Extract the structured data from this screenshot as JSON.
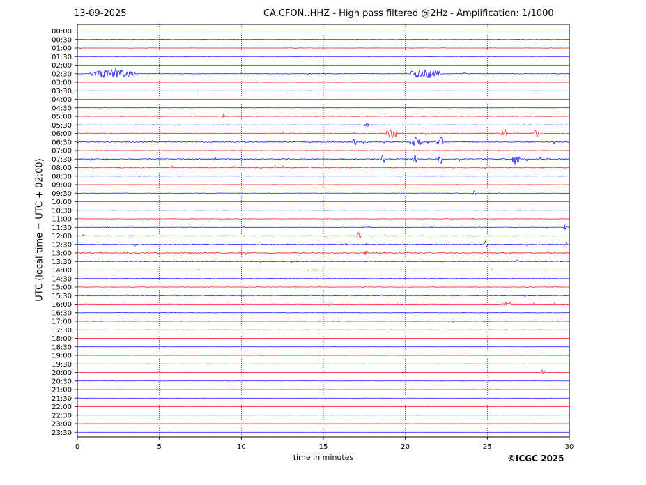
{
  "header": {
    "date": "13-09-2025",
    "title": "CA.CFON..HHZ - High pass filtered @2Hz - Amplification: 1/1000"
  },
  "footer": {
    "copyright": "©ICGC 2025"
  },
  "chart_data": {
    "type": "line",
    "title": "CA.CFON..HHZ - High pass filtered @2Hz - Amplification: 1/1000",
    "xlabel": "time in minutes",
    "ylabel": "UTC (local time = UTC + 02:00)",
    "xlim": [
      0,
      30
    ],
    "x_ticks": [
      0,
      5,
      10,
      15,
      20,
      25,
      30
    ],
    "x_gridlines": "dotted at 5, 10, 15, 20, 25",
    "trace_colors": [
      "#ff0000",
      "#0000ff"
    ],
    "rows": [
      "00:00",
      "00:30",
      "01:00",
      "01:30",
      "02:00",
      "02:30",
      "03:00",
      "03:30",
      "04:00",
      "04:30",
      "05:00",
      "05:30",
      "06:00",
      "06:30",
      "07:00",
      "07:30",
      "08:00",
      "08:30",
      "09:00",
      "09:30",
      "10:00",
      "10:30",
      "11:00",
      "11:30",
      "12:00",
      "12:30",
      "13:00",
      "13:30",
      "14:00",
      "14:30",
      "15:00",
      "15:30",
      "16:00",
      "16:30",
      "17:00",
      "17:30",
      "18:00",
      "18:30",
      "19:00",
      "19:30",
      "20:00",
      "20:30",
      "21:00",
      "21:30",
      "22:00",
      "22:30",
      "23:00",
      "23:30"
    ],
    "row_activity": [
      0.2,
      0.3,
      0.3,
      0.2,
      0.2,
      0.5,
      0.15,
      0.15,
      0.2,
      0.15,
      0.4,
      0.4,
      0.8,
      0.8,
      0.3,
      0.9,
      0.8,
      0.25,
      0.25,
      0.4,
      0.25,
      0.25,
      0.4,
      0.4,
      0.7,
      0.7,
      0.8,
      0.7,
      0.5,
      0.35,
      0.45,
      0.5,
      0.7,
      0.35,
      0.4,
      0.25,
      0.3,
      0.2,
      0.15,
      0.15,
      0.2,
      0.15,
      0.15,
      0.15,
      0.12,
      0.12,
      0.1,
      0.1
    ],
    "events": [
      {
        "row": "02:30",
        "x": [
          0.8,
          3.5
        ],
        "amp": 1.0
      },
      {
        "row": "02:30",
        "x": [
          20.3,
          22.2
        ],
        "amp": 1.0
      },
      {
        "row": "05:00",
        "x": [
          8.8,
          9.1
        ],
        "amp": 0.5
      },
      {
        "row": "05:30",
        "x": [
          17.5,
          17.8
        ],
        "amp": 0.4
      },
      {
        "row": "06:00",
        "x": [
          18.8,
          19.5
        ],
        "amp": 1.0
      },
      {
        "row": "06:00",
        "x": [
          25.8,
          26.2
        ],
        "amp": 1.0
      },
      {
        "row": "06:00",
        "x": [
          27.8,
          28.2
        ],
        "amp": 1.5
      },
      {
        "row": "06:30",
        "x": [
          16.8,
          17.0
        ],
        "amp": 1.4
      },
      {
        "row": "06:30",
        "x": [
          20.3,
          21.0
        ],
        "amp": 1.0
      },
      {
        "row": "06:30",
        "x": [
          22.0,
          22.3
        ],
        "amp": 1.0
      },
      {
        "row": "07:30",
        "x": [
          18.5,
          18.7
        ],
        "amp": 2.6
      },
      {
        "row": "07:30",
        "x": [
          20.4,
          20.7
        ],
        "amp": 1.2
      },
      {
        "row": "07:30",
        "x": [
          22.0,
          22.3
        ],
        "amp": 1.0
      },
      {
        "row": "07:30",
        "x": [
          26.5,
          27.0
        ],
        "amp": 1.2
      },
      {
        "row": "09:30",
        "x": [
          24.1,
          24.3
        ],
        "amp": 0.8
      },
      {
        "row": "11:30",
        "x": [
          29.6,
          29.9
        ],
        "amp": 0.6
      },
      {
        "row": "12:00",
        "x": [
          17.0,
          17.3
        ],
        "amp": 0.7
      },
      {
        "row": "12:30",
        "x": [
          24.8,
          25.0
        ],
        "amp": 0.8
      },
      {
        "row": "13:00",
        "x": [
          17.4,
          17.7
        ],
        "amp": 0.7
      },
      {
        "row": "16:00",
        "x": [
          25.8,
          26.5
        ],
        "amp": 0.6
      },
      {
        "row": "20:00",
        "x": [
          28.3,
          28.5
        ],
        "amp": 0.6
      }
    ]
  }
}
